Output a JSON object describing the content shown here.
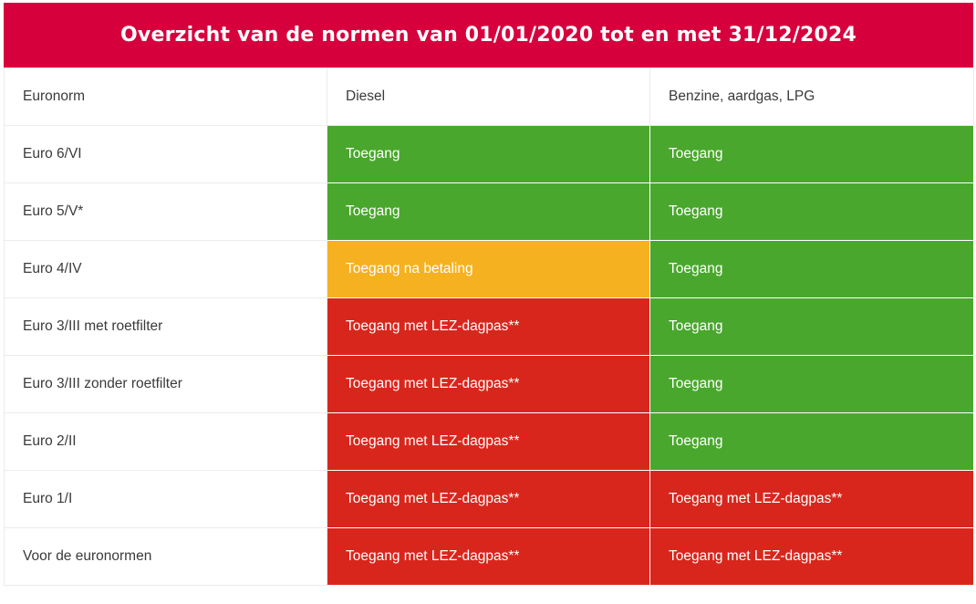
{
  "title": "Overzicht van de normen van 01/01/2020 tot en met 31/12/2024",
  "colors": {
    "title_bg": "#d6003d",
    "access": "#4aa72d",
    "access_with_payment": "#f5b120",
    "access_with_daypass": "#d9261c"
  },
  "table": {
    "headers": [
      "Euronorm",
      "Diesel",
      "Benzine, aardgas, LPG"
    ],
    "rows": [
      {
        "norm": "Euro 6/VI",
        "diesel": "Toegang",
        "diesel_status": "green",
        "petrol": "Toegang",
        "petrol_status": "green"
      },
      {
        "norm": "Euro 5/V*",
        "diesel": "Toegang",
        "diesel_status": "green",
        "petrol": "Toegang",
        "petrol_status": "green"
      },
      {
        "norm": "Euro 4/IV",
        "diesel": "Toegang na betaling",
        "diesel_status": "orange",
        "petrol": "Toegang",
        "petrol_status": "green"
      },
      {
        "norm": "Euro 3/III met roetfilter",
        "diesel": "Toegang met LEZ-dagpas**",
        "diesel_status": "red",
        "petrol": "Toegang",
        "petrol_status": "green"
      },
      {
        "norm": "Euro 3/III zonder roetfilter",
        "diesel": "Toegang met LEZ-dagpas**",
        "diesel_status": "red",
        "petrol": "Toegang",
        "petrol_status": "green"
      },
      {
        "norm": "Euro 2/II",
        "diesel": "Toegang met LEZ-dagpas**",
        "diesel_status": "red",
        "petrol": "Toegang",
        "petrol_status": "green"
      },
      {
        "norm": "Euro 1/I",
        "diesel": "Toegang met LEZ-dagpas**",
        "diesel_status": "red",
        "petrol": "Toegang met LEZ-dagpas**",
        "petrol_status": "red"
      },
      {
        "norm": "Voor de euronormen",
        "diesel": "Toegang met LEZ-dagpas**",
        "diesel_status": "red",
        "petrol": "Toegang met LEZ-dagpas**",
        "petrol_status": "red"
      }
    ]
  }
}
